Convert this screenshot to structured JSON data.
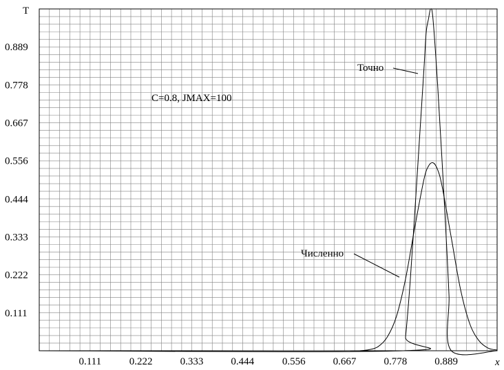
{
  "chart_data": {
    "type": "line",
    "title": "",
    "xlabel": "x",
    "ylabel": "T",
    "xlim": [
      0,
      1
    ],
    "ylim": [
      0,
      1
    ],
    "grid": true,
    "x_ticks": [
      "0.111",
      "0.222",
      "0.333",
      "0.444",
      "0.556",
      "0.667",
      "0.778",
      "0.889"
    ],
    "y_ticks": [
      "0.111",
      "0.222",
      "0.333",
      "0.444",
      "0.556",
      "0.667",
      "0.778",
      "0.889"
    ],
    "annotation": "C=0.8, JMAX=100",
    "series": [
      {
        "name": "Точно",
        "x": [
          0.0,
          0.795,
          0.8,
          0.81,
          0.82,
          0.83,
          0.84,
          0.845,
          0.85,
          0.855,
          0.86,
          0.87,
          0.88,
          0.89,
          0.895,
          0.9,
          1.0
        ],
        "y": [
          0.0,
          0.0,
          0.04,
          0.2,
          0.4,
          0.61,
          0.82,
          0.93,
          0.97,
          1.0,
          0.97,
          0.78,
          0.55,
          0.3,
          0.16,
          0.0,
          0.0
        ]
      },
      {
        "name": "Численно",
        "x": [
          0.7,
          0.72,
          0.74,
          0.76,
          0.78,
          0.8,
          0.82,
          0.84,
          0.85,
          0.86,
          0.87,
          0.88,
          0.9,
          0.92,
          0.94,
          0.96,
          0.98,
          1.0
        ],
        "y": [
          0.0,
          0.003,
          0.012,
          0.04,
          0.1,
          0.21,
          0.36,
          0.5,
          0.54,
          0.55,
          0.53,
          0.48,
          0.33,
          0.18,
          0.08,
          0.03,
          0.008,
          0.002
        ]
      }
    ]
  }
}
